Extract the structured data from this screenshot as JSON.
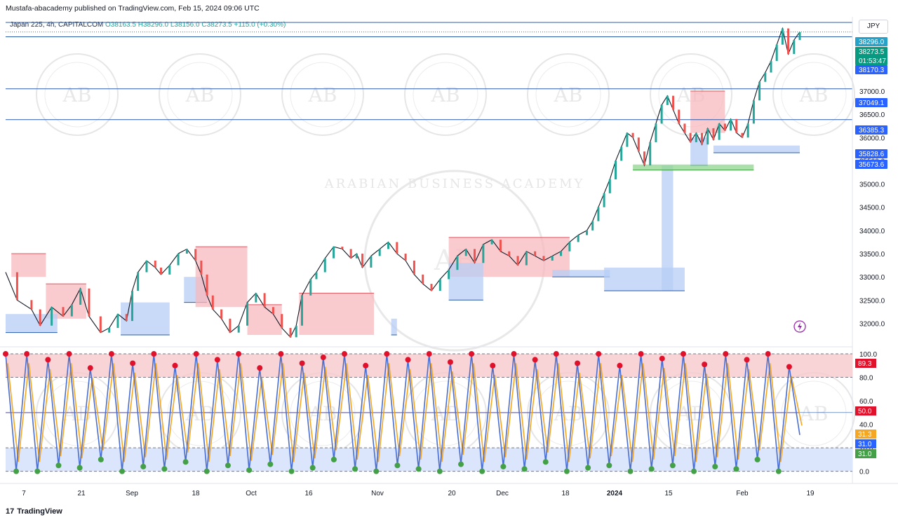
{
  "header": {
    "published": "Mustafa-abacademy published on TradingView.com, Feb 15, 2024 09:06 UTC"
  },
  "legend": {
    "symbol": "Japan 225, 4h, CAPITALCOM",
    "open": "O38163.5",
    "high": "H38296.0",
    "low": "L38156.0",
    "close": "C38273.5",
    "change": "+115.0 (+0.30%)"
  },
  "currency": "JPY",
  "watermark": {
    "text": "ARABIAN BUSINESS ACADEMY",
    "initials": "AB"
  },
  "footer": {
    "brand": "TradingView",
    "logo": "17"
  },
  "colors": {
    "price_line": "#131722",
    "hline": "#2a5caa",
    "supply_zone": "#f7b8be",
    "demand_zone": "#b7cdf6",
    "green_zone": "#8fd68f",
    "stoch_k": "#4a6fd1",
    "stoch_d": "#f5a623",
    "overbought": "#f7c9cd",
    "oversold": "#dbe5fb",
    "dot_high": "#e0112b",
    "dot_low": "#43a047"
  },
  "chart_data": [
    {
      "type": "line",
      "title": "",
      "series_name": "Japan 225, 4h, CAPITALCOM",
      "x_ticks": [
        "7",
        "21",
        "Sep",
        "18",
        "Oct",
        "16",
        "Nov",
        "20",
        "Dec",
        "18",
        "2024",
        "15",
        "Feb",
        "19"
      ],
      "y_ticks": [
        32000.0,
        32500.0,
        33000.0,
        33500.0,
        34000.0,
        34500.0,
        35000.0,
        35500.0,
        36000.0,
        36500.0,
        37000.0,
        37500.0
      ],
      "y_tick_labels": [
        "32000.0",
        "32500.0",
        "33000.0",
        "33500.0",
        "34000.0",
        "34500.0",
        "35000.0",
        "35500.0",
        "36000.0",
        "36500.0",
        "37000.0",
        "37500.0"
      ],
      "ylim": [
        31750,
        38600
      ],
      "horizontal_levels": [
        37049.1,
        36385.3
      ],
      "price_tags": [
        {
          "label": "38296.0",
          "value": 38296.0,
          "color": "#26a2c9"
        },
        {
          "label": "38273.5",
          "sub": "01:53:47",
          "value": 38273.5,
          "color": "#089981"
        },
        {
          "label": "38170.3",
          "value": 38170.3,
          "color": "#2962ff"
        },
        {
          "label": "37049.1",
          "value": 37049.1,
          "color": "#2962ff"
        },
        {
          "label": "36385.3",
          "value": 36385.3,
          "color": "#2962ff"
        },
        {
          "label": "35828.6",
          "value": 35828.6,
          "color": "#2962ff"
        },
        {
          "label": "35673.6",
          "value": 35673.6,
          "color": "#2962ff"
        }
      ],
      "path": [
        [
          0,
          33100
        ],
        [
          4,
          32500
        ],
        [
          9,
          32300
        ],
        [
          12,
          31950
        ],
        [
          16,
          32350
        ],
        [
          20,
          32150
        ],
        [
          23,
          32400
        ],
        [
          26,
          32750
        ],
        [
          29,
          32150
        ],
        [
          33,
          31800
        ],
        [
          36,
          31900
        ],
        [
          39,
          32200
        ],
        [
          42,
          32050
        ],
        [
          44,
          32700
        ],
        [
          46,
          33100
        ],
        [
          49,
          33350
        ],
        [
          52,
          33200
        ],
        [
          54,
          33050
        ],
        [
          57,
          33250
        ],
        [
          60,
          33500
        ],
        [
          63,
          33600
        ],
        [
          66,
          33350
        ],
        [
          68,
          33050
        ],
        [
          70,
          32600
        ],
        [
          72,
          32300
        ],
        [
          75,
          32100
        ],
        [
          78,
          31800
        ],
        [
          81,
          31950
        ],
        [
          84,
          32450
        ],
        [
          87,
          32650
        ],
        [
          90,
          32350
        ],
        [
          93,
          32200
        ],
        [
          96,
          31900
        ],
        [
          99,
          31700
        ],
        [
          101,
          31950
        ],
        [
          103,
          32600
        ],
        [
          106,
          32950
        ],
        [
          108,
          33100
        ],
        [
          111,
          33400
        ],
        [
          114,
          33650
        ],
        [
          117,
          33600
        ],
        [
          120,
          33400
        ],
        [
          122,
          33500
        ],
        [
          124,
          33200
        ],
        [
          127,
          33450
        ],
        [
          130,
          33600
        ],
        [
          133,
          33750
        ],
        [
          136,
          33500
        ],
        [
          139,
          33350
        ],
        [
          142,
          33050
        ],
        [
          145,
          32850
        ],
        [
          148,
          32700
        ],
        [
          151,
          32950
        ],
        [
          154,
          33150
        ],
        [
          157,
          33450
        ],
        [
          160,
          33600
        ],
        [
          163,
          33300
        ],
        [
          166,
          33700
        ],
        [
          169,
          33800
        ],
        [
          172,
          33550
        ],
        [
          175,
          33450
        ],
        [
          178,
          33250
        ],
        [
          181,
          33550
        ],
        [
          184,
          33450
        ],
        [
          187,
          33350
        ],
        [
          190,
          33450
        ],
        [
          193,
          33550
        ],
        [
          196,
          33750
        ],
        [
          199,
          33900
        ],
        [
          202,
          34000
        ],
        [
          204,
          34200
        ],
        [
          206,
          34500
        ],
        [
          208,
          34800
        ],
        [
          210,
          35100
        ],
        [
          212,
          35500
        ],
        [
          214,
          35800
        ],
        [
          216,
          36100
        ],
        [
          218,
          36000
        ],
        [
          220,
          35700
        ],
        [
          222,
          35400
        ],
        [
          224,
          35900
        ],
        [
          226,
          36300
        ],
        [
          228,
          36700
        ],
        [
          230,
          36900
        ],
        [
          232,
          36600
        ],
        [
          234,
          36300
        ],
        [
          236,
          36100
        ],
        [
          238,
          35900
        ],
        [
          240,
          36100
        ],
        [
          242,
          35850
        ],
        [
          244,
          36200
        ],
        [
          246,
          35950
        ],
        [
          248,
          36300
        ],
        [
          250,
          36150
        ],
        [
          252,
          36400
        ],
        [
          254,
          36100
        ],
        [
          256,
          36000
        ],
        [
          258,
          36300
        ],
        [
          260,
          36800
        ],
        [
          262,
          37200
        ],
        [
          264,
          37400
        ],
        [
          266,
          37650
        ],
        [
          268,
          38000
        ],
        [
          270,
          38350
        ],
        [
          272,
          37800
        ],
        [
          274,
          38100
        ],
        [
          276,
          38273.5
        ]
      ],
      "path_x_range": [
        0,
        276
      ],
      "zones": [
        {
          "kind": "supply",
          "x0": 2,
          "x1": 14,
          "lo": 33000,
          "hi": 33500
        },
        {
          "kind": "supply",
          "x0": 14,
          "x1": 28,
          "lo": 32100,
          "hi": 32850
        },
        {
          "kind": "demand",
          "x0": 0,
          "x1": 18,
          "lo": 31800,
          "hi": 32200
        },
        {
          "kind": "demand",
          "x0": 40,
          "x1": 57,
          "lo": 31750,
          "hi": 32450
        },
        {
          "kind": "demand",
          "x0": 62,
          "x1": 70,
          "lo": 32450,
          "hi": 33000
        },
        {
          "kind": "supply",
          "x0": 66,
          "x1": 84,
          "lo": 32350,
          "hi": 33650
        },
        {
          "kind": "supply",
          "x0": 84,
          "x1": 96,
          "lo": 31750,
          "hi": 32400
        },
        {
          "kind": "supply",
          "x0": 102,
          "x1": 128,
          "lo": 31750,
          "hi": 32650
        },
        {
          "kind": "demand",
          "x0": 134,
          "x1": 136,
          "lo": 31750,
          "hi": 32100
        },
        {
          "kind": "supply",
          "x0": 154,
          "x1": 196,
          "lo": 33000,
          "hi": 33850
        },
        {
          "kind": "demand",
          "x0": 154,
          "x1": 166,
          "lo": 32500,
          "hi": 33300
        },
        {
          "kind": "demand",
          "x0": 190,
          "x1": 210,
          "lo": 33000,
          "hi": 33150
        },
        {
          "kind": "demand",
          "x0": 208,
          "x1": 236,
          "lo": 32700,
          "hi": 33200
        },
        {
          "kind": "demand",
          "x0": 228,
          "x1": 232,
          "lo": 32700,
          "hi": 35400
        },
        {
          "kind": "supply",
          "x0": 238,
          "x1": 250,
          "lo": 36100,
          "hi": 37000
        },
        {
          "kind": "demand",
          "x0": 238,
          "x1": 244,
          "lo": 35400,
          "hi": 36000
        },
        {
          "kind": "demand",
          "x0": 246,
          "x1": 276,
          "lo": 35673.6,
          "hi": 35828.6
        },
        {
          "kind": "green",
          "x0": 218,
          "x1": 260,
          "lo": 35300,
          "hi": 35420
        }
      ]
    },
    {
      "type": "line",
      "title": "",
      "series": [
        {
          "name": "",
          "color": "#4a6fd1"
        },
        {
          "name": "",
          "color": "#f5a623"
        }
      ],
      "y_ticks": [
        0.0,
        20.0,
        40.0,
        60.0,
        80.0,
        100.0
      ],
      "y_tick_labels": [
        "0.0",
        "20.0",
        "40.0",
        "60.0",
        "80.0",
        "100.0"
      ],
      "ylim": [
        -2,
        103
      ],
      "bands": {
        "overbought": [
          80,
          100
        ],
        "oversold": [
          0,
          20
        ],
        "mid": 50
      },
      "value_tags": [
        {
          "label": "89.3",
          "value": 89.3,
          "color": "#e0112b"
        },
        {
          "label": "50.0",
          "value": 50.0,
          "color": "#e0112b"
        },
        {
          "label": "31.3",
          "value": 31.3,
          "color": "#f5a623"
        },
        {
          "label": "31.0",
          "value": 31.0,
          "color": "#2962ff"
        },
        {
          "label": "31.0",
          "value": 31.0,
          "color": "#43a047"
        }
      ],
      "peaks_troughs": [
        100,
        0,
        100,
        0,
        95,
        5,
        100,
        3,
        88,
        10,
        100,
        0,
        92,
        4,
        100,
        2,
        90,
        8,
        100,
        0,
        95,
        5,
        100,
        1,
        88,
        6,
        100,
        0,
        92,
        3,
        97,
        10,
        100,
        2,
        90,
        0,
        100,
        5,
        95,
        2,
        100,
        0,
        93,
        6,
        100,
        0,
        90,
        4,
        100,
        2,
        95,
        8,
        100,
        0,
        92,
        3,
        100,
        5,
        90,
        0,
        100,
        2,
        96,
        5,
        100,
        0,
        91,
        4,
        100,
        2,
        95,
        10,
        100,
        0,
        89,
        31
      ]
    }
  ]
}
